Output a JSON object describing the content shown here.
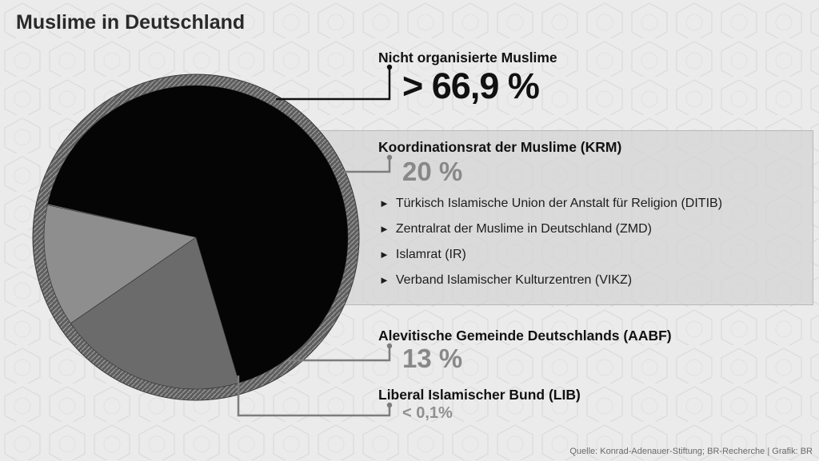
{
  "title": "Muslime in Deutschland",
  "source": "Quelle: Konrad-Adenauer-Stiftung; BR-Recherche | Grafik: BR",
  "chart_data": {
    "type": "pie",
    "title": "Muslime in Deutschland",
    "slices": [
      {
        "label": "Nicht organisierte Muslime",
        "value": 66.9,
        "display": "> 66,9 %",
        "color": "#050505"
      },
      {
        "label": "Koordinationsrat der Muslime (KRM)",
        "value": 20,
        "display": "20 %",
        "color": "#6b6b6b",
        "members": [
          "Türkisch Islamische Union der Anstalt für Religion (DITIB)",
          "Zentralrat der Muslime in Deutschland (ZMD)",
          "Islamrat (IR)",
          "Verband Islamischer Kulturzentren (VIKZ)"
        ]
      },
      {
        "label": "Alevitische Gemeinde Deutschlands (AABF)",
        "value": 13,
        "display": "13 %",
        "color": "#8e8e8e"
      },
      {
        "label": "Liberal Islamischer Bund (LIB)",
        "value": 0.1,
        "display": "< 0,1%",
        "color": "#a5a5a5"
      }
    ],
    "bullet": "►",
    "colors": {
      "ring": "#7a7a7a",
      "background": "#e9e9e9",
      "connector": "#7d7d7d"
    }
  }
}
